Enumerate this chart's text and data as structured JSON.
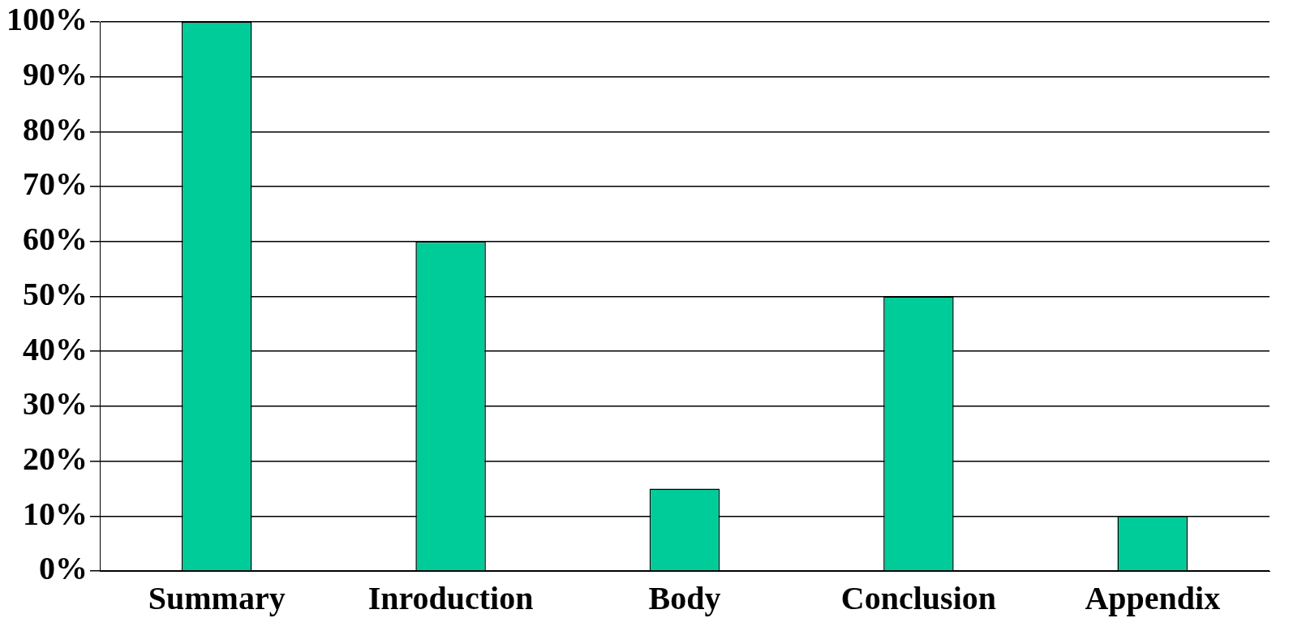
{
  "chart_data": {
    "type": "bar",
    "categories": [
      "Summary",
      "Inroduction",
      "Body",
      "Conclusion",
      "Appendix"
    ],
    "values": [
      100,
      60,
      15,
      50,
      10
    ],
    "color": "#00cc99",
    "ylim": [
      0,
      100
    ],
    "yticks": [
      {
        "value": 0,
        "label": "0%"
      },
      {
        "value": 10,
        "label": "10%"
      },
      {
        "value": 20,
        "label": "20%"
      },
      {
        "value": 30,
        "label": "30%"
      },
      {
        "value": 40,
        "label": "40%"
      },
      {
        "value": 50,
        "label": "50%"
      },
      {
        "value": 60,
        "label": "60%"
      },
      {
        "value": 70,
        "label": "70%"
      },
      {
        "value": 80,
        "label": "80%"
      },
      {
        "value": 90,
        "label": "90%"
      },
      {
        "value": 100,
        "label": "100%"
      }
    ],
    "grid": "y",
    "legend": false
  }
}
